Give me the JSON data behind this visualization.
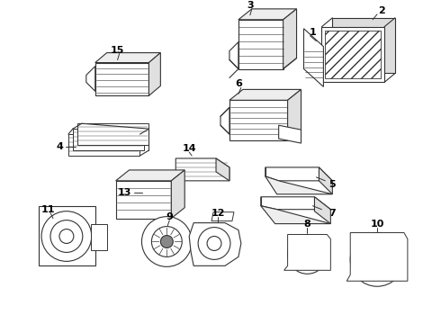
{
  "bg_color": "#ffffff",
  "line_color": "#333333",
  "text_color": "#000000",
  "fig_width": 4.9,
  "fig_height": 3.6,
  "dpi": 100
}
